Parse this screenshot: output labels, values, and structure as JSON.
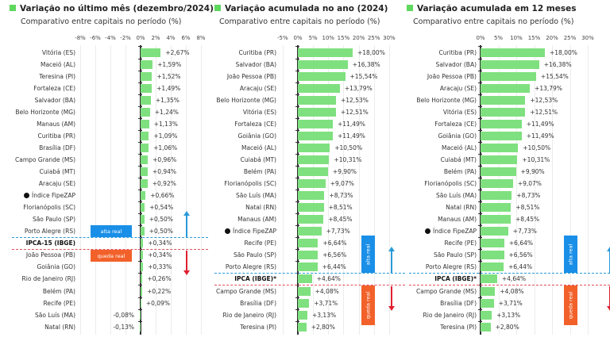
{
  "colors": {
    "bar": "#7fe07f",
    "alta": "#1a8fe8",
    "queda": "#f2612a",
    "blue_arrow": "#2a9ad8",
    "red_arrow": "#e02030"
  },
  "chart_data": [
    {
      "type": "bar",
      "orientation": "horizontal",
      "title": "Variação no último mês (dezembro/2024)",
      "subtitle": "Comparativo entre capitais no período (%)",
      "xlim": [
        -8,
        8
      ],
      "ticks": [
        "-8%",
        "-6%",
        "-4%",
        "-2%",
        "0%",
        "2%",
        "4%",
        "6%",
        "8%"
      ],
      "tick_values": [
        -8,
        -6,
        -4,
        -2,
        0,
        2,
        4,
        6,
        8
      ],
      "alta_label": "alta real",
      "queda_label": "queda real",
      "rows": [
        {
          "name": "Vitória (ES)",
          "value": 2.67,
          "label": "+2,67%"
        },
        {
          "name": "Maceió (AL)",
          "value": 1.59,
          "label": "+1,59%"
        },
        {
          "name": "Teresina (PI)",
          "value": 1.52,
          "label": "+1,52%"
        },
        {
          "name": "Fortaleza (CE)",
          "value": 1.49,
          "label": "+1,49%"
        },
        {
          "name": "Salvador (BA)",
          "value": 1.35,
          "label": "+1,35%"
        },
        {
          "name": "Belo Horizonte (MG)",
          "value": 1.24,
          "label": "+1,24%"
        },
        {
          "name": "Manaus (AM)",
          "value": 1.13,
          "label": "+1,13%"
        },
        {
          "name": "Curitiba (PR)",
          "value": 1.09,
          "label": "+1,09%"
        },
        {
          "name": "Brasília (DF)",
          "value": 1.06,
          "label": "+1,06%"
        },
        {
          "name": "Campo Grande (MS)",
          "value": 0.96,
          "label": "+0,96%"
        },
        {
          "name": "Cuiabá (MT)",
          "value": 0.94,
          "label": "+0,94%"
        },
        {
          "name": "Aracaju (SE)",
          "value": 0.92,
          "label": "+0,92%"
        },
        {
          "name": "Índice FipeZAP",
          "value": 0.66,
          "label": "+0,66%",
          "kind": "index"
        },
        {
          "name": "Florianópolis (SC)",
          "value": 0.54,
          "label": "+0,54%"
        },
        {
          "name": "São Paulo (SP)",
          "value": 0.5,
          "label": "+0,50%"
        },
        {
          "name": "Porto Alegre (RS)",
          "value": 0.5,
          "label": "+0,50%"
        },
        {
          "name": "IPCA-15 (IBGE)",
          "value": 0.34,
          "label": "+0,34%",
          "kind": "benchmark"
        },
        {
          "name": "João Pessoa (PB)",
          "value": 0.34,
          "label": "+0,34%"
        },
        {
          "name": "Goiânia (GO)",
          "value": 0.33,
          "label": "+0,33%"
        },
        {
          "name": "Rio de Janeiro (RJ)",
          "value": 0.26,
          "label": "+0,26%"
        },
        {
          "name": "Belém (PA)",
          "value": 0.22,
          "label": "+0,22%"
        },
        {
          "name": "Recife (PE)",
          "value": 0.09,
          "label": "+0,09%"
        },
        {
          "name": "São Luís (MA)",
          "value": -0.08,
          "label": "-0,08%"
        },
        {
          "name": "Natal (RN)",
          "value": -0.13,
          "label": "-0,13%"
        }
      ]
    },
    {
      "type": "bar",
      "orientation": "horizontal",
      "title": "Variação acumulada no ano (2024)",
      "subtitle": "Comparativo entre capitais no período (%)",
      "xlim": [
        -5,
        30
      ],
      "ticks": [
        "-5%",
        "0%",
        "5%",
        "10%",
        "15%",
        "20%",
        "25%",
        "30%"
      ],
      "tick_values": [
        -5,
        0,
        5,
        10,
        15,
        20,
        25,
        30
      ],
      "alta_label": "alta real",
      "queda_label": "queda real",
      "rows": [
        {
          "name": "Curitiba (PR)",
          "value": 18.0,
          "label": "+18,00%"
        },
        {
          "name": "Salvador (BA)",
          "value": 16.38,
          "label": "+16,38%"
        },
        {
          "name": "João Pessoa (PB)",
          "value": 15.54,
          "label": "+15,54%"
        },
        {
          "name": "Aracaju (SE)",
          "value": 13.79,
          "label": "+13,79%"
        },
        {
          "name": "Belo Horizonte (MG)",
          "value": 12.53,
          "label": "+12,53%"
        },
        {
          "name": "Vitória (ES)",
          "value": 12.51,
          "label": "+12,51%"
        },
        {
          "name": "Fortaleza (CE)",
          "value": 11.49,
          "label": "+11,49%"
        },
        {
          "name": "Goiânia (GO)",
          "value": 11.49,
          "label": "+11,49%"
        },
        {
          "name": "Maceió (AL)",
          "value": 10.5,
          "label": "+10,50%"
        },
        {
          "name": "Cuiabá (MT)",
          "value": 10.31,
          "label": "+10,31%"
        },
        {
          "name": "Belém (PA)",
          "value": 9.9,
          "label": "+9,90%"
        },
        {
          "name": "Florianópolis (SC)",
          "value": 9.07,
          "label": "+9,07%"
        },
        {
          "name": "São Luís (MA)",
          "value": 8.73,
          "label": "+8,73%"
        },
        {
          "name": "Natal (RN)",
          "value": 8.51,
          "label": "+8,51%"
        },
        {
          "name": "Manaus (AM)",
          "value": 8.45,
          "label": "+8,45%"
        },
        {
          "name": "Índice FipeZAP",
          "value": 7.73,
          "label": "+7,73%",
          "kind": "index"
        },
        {
          "name": "Recife (PE)",
          "value": 6.64,
          "label": "+6,64%"
        },
        {
          "name": "São Paulo (SP)",
          "value": 6.56,
          "label": "+6,56%"
        },
        {
          "name": "Porto Alegre (RS)",
          "value": 6.44,
          "label": "+6,44%"
        },
        {
          "name": "IPCA (IBGE)*",
          "value": 4.64,
          "label": "+4,64%",
          "kind": "benchmark"
        },
        {
          "name": "Campo Grande (MS)",
          "value": 4.08,
          "label": "+4,08%"
        },
        {
          "name": "Brasília (DF)",
          "value": 3.71,
          "label": "+3,71%"
        },
        {
          "name": "Rio de Janeiro (RJ)",
          "value": 3.13,
          "label": "+3,13%"
        },
        {
          "name": "Teresina (PI)",
          "value": 2.8,
          "label": "+2,80%"
        }
      ]
    },
    {
      "type": "bar",
      "orientation": "horizontal",
      "title": "Variação acumulada em 12 meses",
      "subtitle": "Comparativo entre capitais no período (%)",
      "xlim": [
        0,
        30
      ],
      "ticks": [
        "0%",
        "5%",
        "10%",
        "15%",
        "20%",
        "25%",
        "30%"
      ],
      "tick_values": [
        0,
        5,
        10,
        15,
        20,
        25,
        30
      ],
      "alta_label": "alta real",
      "queda_label": "queda real",
      "rows": [
        {
          "name": "Curitiba (PR)",
          "value": 18.0,
          "label": "+18,00%"
        },
        {
          "name": "Salvador (BA)",
          "value": 16.38,
          "label": "+16,38%"
        },
        {
          "name": "João Pessoa (PB)",
          "value": 15.54,
          "label": "+15,54%"
        },
        {
          "name": "Aracaju (SE)",
          "value": 13.79,
          "label": "+13,79%"
        },
        {
          "name": "Belo Horizonte (MG)",
          "value": 12.53,
          "label": "+12,53%"
        },
        {
          "name": "Vitória (ES)",
          "value": 12.51,
          "label": "+12,51%"
        },
        {
          "name": "Fortaleza (CE)",
          "value": 11.49,
          "label": "+11,49%"
        },
        {
          "name": "Goiânia (GO)",
          "value": 11.49,
          "label": "+11,49%"
        },
        {
          "name": "Maceió (AL)",
          "value": 10.5,
          "label": "+10,50%"
        },
        {
          "name": "Cuiabá (MT)",
          "value": 10.31,
          "label": "+10,31%"
        },
        {
          "name": "Belém (PA)",
          "value": 9.9,
          "label": "+9,90%"
        },
        {
          "name": "Florianópolis (SC)",
          "value": 9.07,
          "label": "+9,07%"
        },
        {
          "name": "São Luís (MA)",
          "value": 8.73,
          "label": "+8,73%"
        },
        {
          "name": "Natal (RN)",
          "value": 8.51,
          "label": "+8,51%"
        },
        {
          "name": "Manaus (AM)",
          "value": 8.45,
          "label": "+8,45%"
        },
        {
          "name": "Índice FipeZAP",
          "value": 7.73,
          "label": "+7,73%",
          "kind": "index"
        },
        {
          "name": "Recife (PE)",
          "value": 6.64,
          "label": "+6,64%"
        },
        {
          "name": "São Paulo (SP)",
          "value": 6.56,
          "label": "+6,56%"
        },
        {
          "name": "Porto Alegre (RS)",
          "value": 6.44,
          "label": "+6,44%"
        },
        {
          "name": "IPCA (IBGE)*",
          "value": 4.64,
          "label": "+4,64%",
          "kind": "benchmark"
        },
        {
          "name": "Campo Grande (MS)",
          "value": 4.08,
          "label": "+4,08%"
        },
        {
          "name": "Brasília (DF)",
          "value": 3.71,
          "label": "+3,71%"
        },
        {
          "name": "Rio de Janeiro (RJ)",
          "value": 3.13,
          "label": "+3,13%"
        },
        {
          "name": "Teresina (PI)",
          "value": 2.8,
          "label": "+2,80%"
        }
      ]
    }
  ]
}
